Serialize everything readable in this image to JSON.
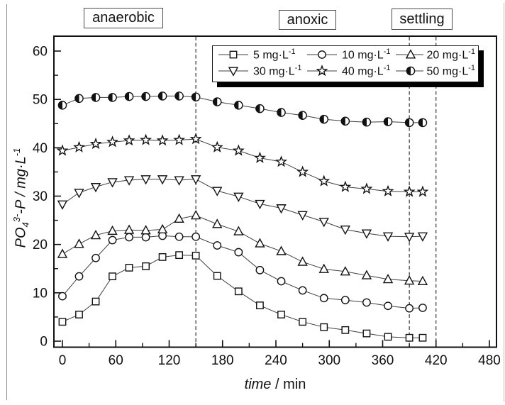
{
  "figure": {
    "phases": [
      {
        "label": "anaerobic"
      },
      {
        "label": "anoxic"
      },
      {
        "label": "settling"
      }
    ],
    "legend": {
      "entries": [
        {
          "marker": "square",
          "text": "5 mg·L",
          "sup": "-1"
        },
        {
          "marker": "circle",
          "text": "10 mg·L",
          "sup": "-1"
        },
        {
          "marker": "triangle-up",
          "text": "20 mg·L",
          "sup": "-1"
        },
        {
          "marker": "triangle-down",
          "text": "30 mg·L",
          "sup": "-1"
        },
        {
          "marker": "star",
          "text": "40 mg·L",
          "sup": "-1"
        },
        {
          "marker": "half-circle",
          "text": "50 mg·L",
          "sup": "-1"
        }
      ]
    },
    "xlabel": {
      "var": "time",
      "rest": " / min"
    },
    "ylabel": {
      "p1": "PO",
      "sub": "4",
      "sup1": "3-",
      "p2": "-P / mg·L",
      "sup2": "-1"
    },
    "colors": {
      "line": "#3f3f3f",
      "marker_stroke": "#111111",
      "dashed_line": "#222222",
      "background": "#ffffff"
    }
  },
  "chart_data": {
    "type": "line",
    "title": "",
    "xlabel": "time / min",
    "ylabel": "PO4(3-)-P / mg·L-1",
    "xlim": [
      0,
      480
    ],
    "ylim": [
      0,
      60
    ],
    "x_ticks": [
      0,
      60,
      120,
      180,
      240,
      300,
      360,
      420,
      480
    ],
    "y_ticks": [
      0,
      10,
      20,
      30,
      40,
      50,
      60
    ],
    "x_minor_step": 30,
    "y_minor_step": 5,
    "grid": false,
    "legend_position": "top-right-inside",
    "phase_boundaries_min": [
      150,
      390,
      420
    ],
    "phases": [
      "anaerobic",
      "anoxic",
      "settling"
    ],
    "x": [
      0,
      18.75,
      37.5,
      56.25,
      75,
      93.75,
      112.5,
      131.25,
      150,
      174,
      198,
      222,
      246,
      270,
      294,
      318,
      342,
      366,
      390,
      405
    ],
    "series": [
      {
        "name": "5 mg·L-1",
        "marker": "square",
        "values": [
          4.0,
          5.5,
          8.2,
          13.4,
          15.2,
          15.5,
          17.4,
          17.8,
          17.7,
          13.5,
          10.3,
          7.4,
          5.5,
          4.0,
          2.9,
          2.3,
          1.6,
          0.9,
          0.7,
          0.7
        ]
      },
      {
        "name": "10 mg·L-1",
        "marker": "circle",
        "values": [
          9.3,
          13.4,
          17.2,
          20.9,
          21.5,
          21.5,
          21.8,
          21.6,
          21.6,
          19.8,
          18.4,
          14.7,
          12.4,
          10.5,
          8.9,
          8.5,
          8.0,
          7.3,
          6.8,
          6.9
        ]
      },
      {
        "name": "20 mg·L-1",
        "marker": "triangle-up",
        "values": [
          18.0,
          20.1,
          21.9,
          22.8,
          23.0,
          22.9,
          23.1,
          25.3,
          26.0,
          24.2,
          22.7,
          20.2,
          18.6,
          16.4,
          14.9,
          14.4,
          13.6,
          12.8,
          12.5,
          12.4
        ]
      },
      {
        "name": "30 mg·L-1",
        "marker": "triangle-down",
        "values": [
          28.3,
          30.7,
          31.9,
          32.9,
          33.3,
          33.5,
          33.5,
          33.3,
          33.5,
          31.1,
          29.9,
          28.4,
          27.5,
          26.1,
          24.7,
          23.1,
          22.3,
          21.7,
          21.6,
          21.7
        ]
      },
      {
        "name": "40 mg·L-1",
        "marker": "star",
        "values": [
          39.4,
          40.1,
          40.8,
          41.2,
          41.5,
          41.6,
          41.5,
          41.6,
          41.8,
          40.1,
          39.4,
          37.9,
          37.1,
          35.0,
          33.1,
          31.9,
          31.5,
          31.0,
          30.9,
          30.9
        ]
      },
      {
        "name": "50 mg·L-1",
        "marker": "half-circle",
        "values": [
          48.8,
          50.2,
          50.4,
          50.4,
          50.6,
          50.6,
          50.7,
          50.7,
          50.5,
          49.5,
          48.8,
          48.1,
          47.3,
          46.7,
          45.9,
          45.5,
          45.3,
          45.4,
          45.2,
          45.2
        ]
      }
    ]
  }
}
